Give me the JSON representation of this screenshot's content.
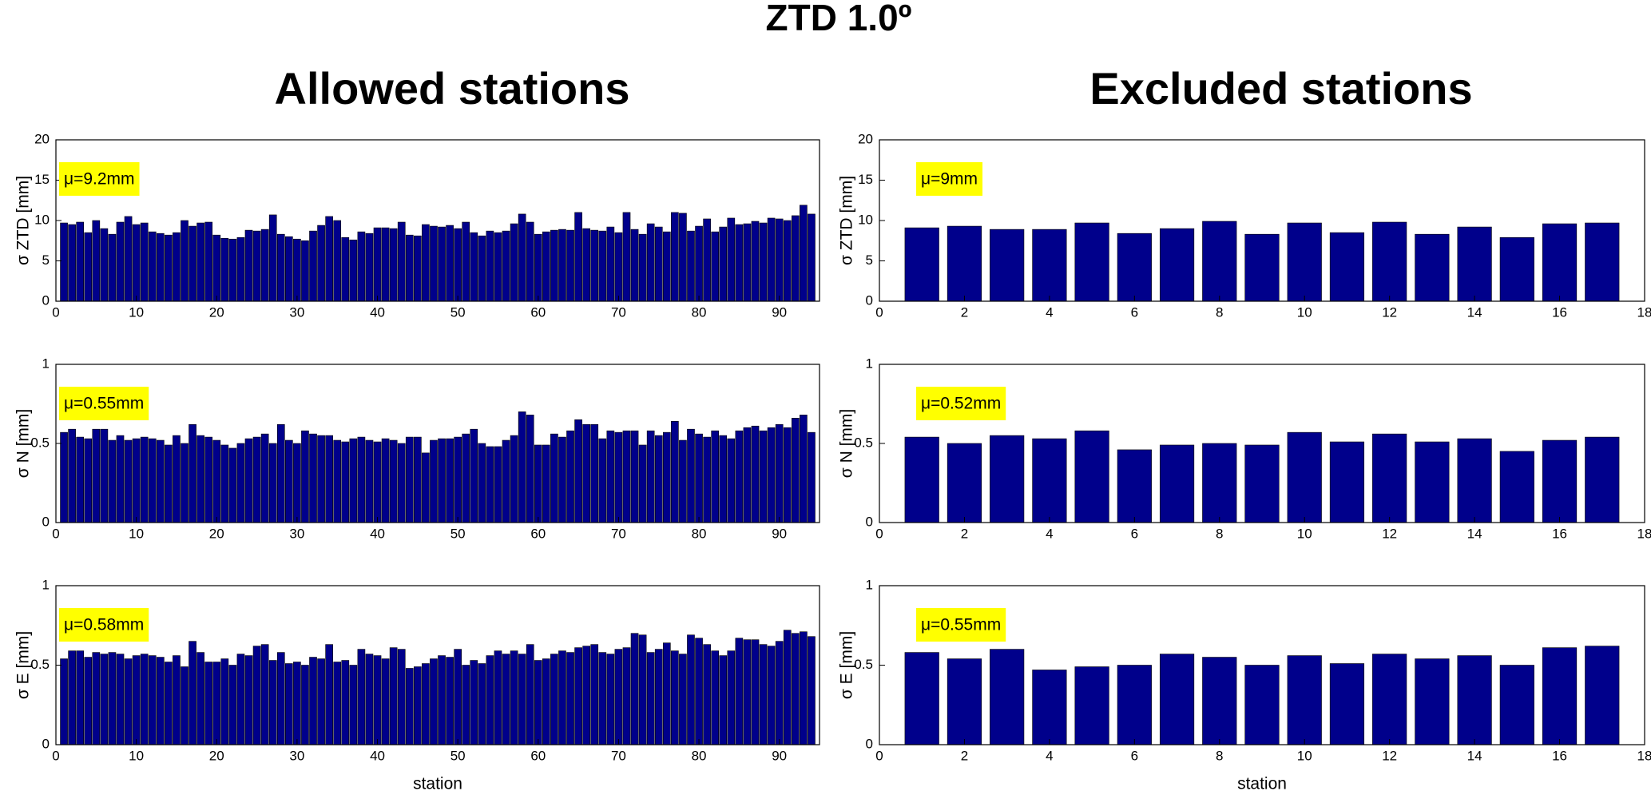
{
  "title": "ZTD 1.0º",
  "column_titles": [
    "Allowed stations",
    "Excluded stations"
  ],
  "chart_data": [
    {
      "type": "bar",
      "ylabel": "σ ZTD [mm]",
      "annotation": "μ=9.2mm",
      "color": "#00008b",
      "x": [
        1,
        2,
        3,
        4,
        5,
        6,
        7,
        8,
        9,
        10,
        11,
        12,
        13,
        14,
        15,
        16,
        17,
        18,
        19,
        20,
        21,
        22,
        23,
        24,
        25,
        26,
        27,
        28,
        29,
        30,
        31,
        32,
        33,
        34,
        35,
        36,
        37,
        38,
        39,
        40,
        41,
        42,
        43,
        44,
        45,
        46,
        47,
        48,
        49,
        50,
        51,
        52,
        53,
        54,
        55,
        56,
        57,
        58,
        59,
        60,
        61,
        62,
        63,
        64,
        65,
        66,
        67,
        68,
        69,
        70,
        71,
        72,
        73,
        74,
        75,
        76,
        77,
        78,
        79,
        80,
        81,
        82,
        83,
        84,
        85,
        86,
        87,
        88,
        89,
        90,
        91,
        92,
        93,
        94
      ],
      "values": [
        9.7,
        9.5,
        9.8,
        8.5,
        10,
        9,
        8.3,
        9.8,
        10.5,
        9.5,
        9.7,
        8.6,
        8.4,
        8.2,
        8.5,
        10,
        9.3,
        9.7,
        9.8,
        8.2,
        7.8,
        7.7,
        7.9,
        8.8,
        8.7,
        8.9,
        10.7,
        8.3,
        8,
        7.7,
        7.5,
        8.7,
        9.4,
        10.5,
        10,
        7.9,
        7.6,
        8.6,
        8.4,
        9.1,
        9.1,
        9,
        9.8,
        8.2,
        8.1,
        9.5,
        9.3,
        9.2,
        9.4,
        9,
        9.8,
        8.5,
        8.1,
        8.7,
        8.5,
        8.7,
        9.6,
        10.8,
        9.8,
        8.3,
        8.6,
        8.8,
        8.9,
        8.8,
        11,
        9,
        8.8,
        8.7,
        9.2,
        8.5,
        11,
        8.9,
        8.3,
        9.6,
        9.2,
        8.6,
        11,
        10.9,
        8.7,
        9.3,
        10.2,
        8.6,
        9.2,
        10.3,
        9.5,
        9.6,
        9.9,
        9.7,
        10.3,
        10.2,
        10,
        10.6,
        11.9,
        10.8
      ],
      "xlim": [
        0,
        95
      ],
      "xticks": [
        0,
        10,
        20,
        30,
        40,
        50,
        60,
        70,
        80,
        90
      ],
      "ylim": [
        0,
        20
      ],
      "yticks": [
        0,
        5,
        10,
        15,
        20
      ]
    },
    {
      "type": "bar",
      "ylabel": "σ ZTD [mm]",
      "annotation": "μ=9mm",
      "color": "#00008b",
      "x": [
        1,
        2,
        3,
        4,
        5,
        6,
        7,
        8,
        9,
        10,
        11,
        12,
        13,
        14,
        15,
        16,
        17
      ],
      "values": [
        9.1,
        9.3,
        8.9,
        8.9,
        9.7,
        8.4,
        9.0,
        9.9,
        8.3,
        9.7,
        8.5,
        9.8,
        8.3,
        9.2,
        7.9,
        9.6,
        9.7
      ],
      "xlim": [
        0,
        18
      ],
      "xticks": [
        0,
        2,
        4,
        6,
        8,
        10,
        12,
        14,
        16,
        18
      ],
      "ylim": [
        0,
        20
      ],
      "yticks": [
        0,
        5,
        10,
        15,
        20
      ]
    },
    {
      "type": "bar",
      "ylabel": "σ N [mm]",
      "annotation": "μ=0.55mm",
      "color": "#00008b",
      "x": [
        1,
        2,
        3,
        4,
        5,
        6,
        7,
        8,
        9,
        10,
        11,
        12,
        13,
        14,
        15,
        16,
        17,
        18,
        19,
        20,
        21,
        22,
        23,
        24,
        25,
        26,
        27,
        28,
        29,
        30,
        31,
        32,
        33,
        34,
        35,
        36,
        37,
        38,
        39,
        40,
        41,
        42,
        43,
        44,
        45,
        46,
        47,
        48,
        49,
        50,
        51,
        52,
        53,
        54,
        55,
        56,
        57,
        58,
        59,
        60,
        61,
        62,
        63,
        64,
        65,
        66,
        67,
        68,
        69,
        70,
        71,
        72,
        73,
        74,
        75,
        76,
        77,
        78,
        79,
        80,
        81,
        82,
        83,
        84,
        85,
        86,
        87,
        88,
        89,
        90,
        91,
        92,
        93,
        94
      ],
      "values": [
        0.57,
        0.59,
        0.54,
        0.53,
        0.59,
        0.59,
        0.52,
        0.55,
        0.52,
        0.53,
        0.54,
        0.53,
        0.52,
        0.49,
        0.55,
        0.5,
        0.62,
        0.55,
        0.54,
        0.52,
        0.49,
        0.47,
        0.5,
        0.53,
        0.54,
        0.56,
        0.5,
        0.62,
        0.52,
        0.5,
        0.58,
        0.56,
        0.55,
        0.55,
        0.52,
        0.51,
        0.53,
        0.54,
        0.52,
        0.51,
        0.53,
        0.52,
        0.5,
        0.54,
        0.54,
        0.44,
        0.52,
        0.53,
        0.53,
        0.54,
        0.56,
        0.59,
        0.5,
        0.48,
        0.48,
        0.52,
        0.55,
        0.7,
        0.68,
        0.49,
        0.49,
        0.56,
        0.54,
        0.58,
        0.65,
        0.62,
        0.62,
        0.53,
        0.58,
        0.57,
        0.58,
        0.58,
        0.49,
        0.58,
        0.55,
        0.57,
        0.64,
        0.52,
        0.59,
        0.56,
        0.54,
        0.58,
        0.55,
        0.53,
        0.58,
        0.6,
        0.61,
        0.58,
        0.6,
        0.62,
        0.6,
        0.66,
        0.68,
        0.57
      ],
      "xlim": [
        0,
        95
      ],
      "xticks": [
        0,
        10,
        20,
        30,
        40,
        50,
        60,
        70,
        80,
        90
      ],
      "ylim": [
        0,
        1
      ],
      "yticks": [
        0,
        0.5,
        1
      ]
    },
    {
      "type": "bar",
      "ylabel": "σ N [mm]",
      "annotation": "μ=0.52mm",
      "color": "#00008b",
      "x": [
        1,
        2,
        3,
        4,
        5,
        6,
        7,
        8,
        9,
        10,
        11,
        12,
        13,
        14,
        15,
        16,
        17
      ],
      "values": [
        0.54,
        0.5,
        0.55,
        0.53,
        0.58,
        0.46,
        0.49,
        0.5,
        0.49,
        0.57,
        0.51,
        0.56,
        0.51,
        0.53,
        0.45,
        0.52,
        0.54
      ],
      "xlim": [
        0,
        18
      ],
      "xticks": [
        0,
        2,
        4,
        6,
        8,
        10,
        12,
        14,
        16,
        18
      ],
      "ylim": [
        0,
        1
      ],
      "yticks": [
        0,
        0.5,
        1
      ]
    },
    {
      "type": "bar",
      "ylabel": "σ E [mm]",
      "xlabel": "station",
      "annotation": "μ=0.58mm",
      "color": "#00008b",
      "x": [
        1,
        2,
        3,
        4,
        5,
        6,
        7,
        8,
        9,
        10,
        11,
        12,
        13,
        14,
        15,
        16,
        17,
        18,
        19,
        20,
        21,
        22,
        23,
        24,
        25,
        26,
        27,
        28,
        29,
        30,
        31,
        32,
        33,
        34,
        35,
        36,
        37,
        38,
        39,
        40,
        41,
        42,
        43,
        44,
        45,
        46,
        47,
        48,
        49,
        50,
        51,
        52,
        53,
        54,
        55,
        56,
        57,
        58,
        59,
        60,
        61,
        62,
        63,
        64,
        65,
        66,
        67,
        68,
        69,
        70,
        71,
        72,
        73,
        74,
        75,
        76,
        77,
        78,
        79,
        80,
        81,
        82,
        83,
        84,
        85,
        86,
        87,
        88,
        89,
        90,
        91,
        92,
        93,
        94
      ],
      "values": [
        0.54,
        0.59,
        0.59,
        0.55,
        0.58,
        0.57,
        0.58,
        0.57,
        0.54,
        0.56,
        0.57,
        0.56,
        0.55,
        0.52,
        0.56,
        0.49,
        0.65,
        0.58,
        0.52,
        0.52,
        0.54,
        0.5,
        0.57,
        0.56,
        0.62,
        0.63,
        0.53,
        0.58,
        0.51,
        0.52,
        0.5,
        0.55,
        0.54,
        0.63,
        0.52,
        0.53,
        0.5,
        0.6,
        0.57,
        0.56,
        0.54,
        0.61,
        0.6,
        0.48,
        0.49,
        0.51,
        0.54,
        0.56,
        0.55,
        0.6,
        0.5,
        0.53,
        0.51,
        0.56,
        0.59,
        0.57,
        0.59,
        0.57,
        0.63,
        0.53,
        0.54,
        0.57,
        0.59,
        0.58,
        0.61,
        0.62,
        0.63,
        0.58,
        0.57,
        0.6,
        0.61,
        0.7,
        0.69,
        0.58,
        0.6,
        0.64,
        0.59,
        0.57,
        0.69,
        0.67,
        0.63,
        0.59,
        0.56,
        0.59,
        0.67,
        0.66,
        0.66,
        0.63,
        0.62,
        0.65,
        0.72,
        0.7,
        0.71,
        0.68
      ],
      "xlim": [
        0,
        95
      ],
      "xticks": [
        0,
        10,
        20,
        30,
        40,
        50,
        60,
        70,
        80,
        90
      ],
      "ylim": [
        0,
        1
      ],
      "yticks": [
        0,
        0.5,
        1
      ]
    },
    {
      "type": "bar",
      "ylabel": "σ E [mm]",
      "xlabel": "station",
      "annotation": "μ=0.55mm",
      "color": "#00008b",
      "x": [
        1,
        2,
        3,
        4,
        5,
        6,
        7,
        8,
        9,
        10,
        11,
        12,
        13,
        14,
        15,
        16,
        17
      ],
      "values": [
        0.58,
        0.54,
        0.6,
        0.47,
        0.49,
        0.5,
        0.57,
        0.55,
        0.5,
        0.56,
        0.51,
        0.57,
        0.54,
        0.56,
        0.5,
        0.61,
        0.62
      ],
      "xlim": [
        0,
        18
      ],
      "xticks": [
        0,
        2,
        4,
        6,
        8,
        10,
        12,
        14,
        16,
        18
      ],
      "ylim": [
        0,
        1
      ],
      "yticks": [
        0,
        0.5,
        1
      ]
    }
  ]
}
